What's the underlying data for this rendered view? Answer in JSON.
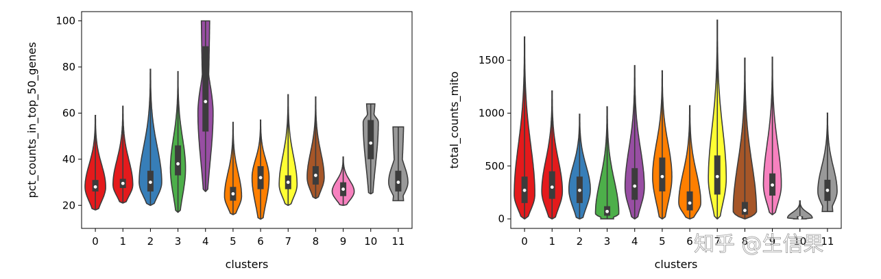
{
  "watermark": "知乎 @生信果",
  "colors": [
    "#e41a1c",
    "#e41a1c",
    "#377eb8",
    "#4daf4a",
    "#984ea3",
    "#ff7f00",
    "#ff7f00",
    "#ffff33",
    "#a65628",
    "#f781bf",
    "#999999",
    "#999999"
  ],
  "chart_data": [
    {
      "type": "violin",
      "xlabel": "clusters",
      "ylabel": "pct_counts_in_top_50_genes",
      "ylim": [
        10,
        104
      ],
      "yticks": [
        20,
        40,
        60,
        80,
        100
      ],
      "categories": [
        "0",
        "1",
        "2",
        "3",
        "4",
        "5",
        "6",
        "7",
        "8",
        "9",
        "10",
        "11"
      ],
      "violins": [
        {
          "min": 18,
          "q1": 26,
          "median": 28,
          "q3": 31,
          "max": 59,
          "peak": 28,
          "width": 0.75
        },
        {
          "min": 21,
          "q1": 27.5,
          "median": 29.5,
          "q3": 31.5,
          "max": 63,
          "peak": 29,
          "width": 0.72
        },
        {
          "min": 20,
          "q1": 26,
          "median": 30,
          "q3": 35,
          "max": 79,
          "peak": 30,
          "width": 0.82
        },
        {
          "min": 17,
          "q1": 33,
          "median": 38,
          "q3": 46,
          "max": 78,
          "peak": 36,
          "width": 0.55
        },
        {
          "min": 26,
          "q1": 52,
          "median": 65,
          "q3": 89,
          "max": 100,
          "peak": 60,
          "width": 0.55,
          "flatTop": true
        },
        {
          "min": 16,
          "q1": 22,
          "median": 25,
          "q3": 28,
          "max": 56,
          "peak": 24,
          "width": 0.62
        },
        {
          "min": 14,
          "q1": 27,
          "median": 32,
          "q3": 37,
          "max": 57,
          "peak": 32,
          "width": 0.62
        },
        {
          "min": 20,
          "q1": 27,
          "median": 30,
          "q3": 33,
          "max": 68,
          "peak": 29,
          "width": 0.65
        },
        {
          "min": 23,
          "q1": 29,
          "median": 33,
          "q3": 37,
          "max": 67,
          "peak": 32,
          "width": 0.62
        },
        {
          "min": 20,
          "q1": 24,
          "median": 27,
          "q3": 30,
          "max": 41,
          "peak": 26,
          "width": 0.8
        },
        {
          "min": 25,
          "q1": 40,
          "median": 47,
          "q3": 57,
          "max": 64,
          "peak": 56,
          "width": 0.55,
          "flatTop": true
        },
        {
          "min": 22,
          "q1": 26,
          "median": 30,
          "q3": 35,
          "max": 54,
          "peak": 30,
          "width": 0.7,
          "flatTop": true,
          "flatBottom": true
        }
      ]
    },
    {
      "type": "violin",
      "xlabel": "clusters",
      "ylabel": "total_counts_mito",
      "ylim": [
        -90,
        1960
      ],
      "yticks": [
        0,
        500,
        1000,
        1500
      ],
      "categories": [
        "0",
        "1",
        "2",
        "3",
        "4",
        "5",
        "6",
        "7",
        "8",
        "9",
        "10",
        "11"
      ],
      "violins": [
        {
          "min": 0,
          "q1": 150,
          "median": 270,
          "q3": 400,
          "max": 1720,
          "peak": 230,
          "width": 0.75
        },
        {
          "min": 0,
          "q1": 190,
          "median": 300,
          "q3": 450,
          "max": 1210,
          "peak": 260,
          "width": 0.75
        },
        {
          "min": 0,
          "q1": 150,
          "median": 270,
          "q3": 400,
          "max": 990,
          "peak": 280,
          "width": 0.78
        },
        {
          "min": 0,
          "q1": 30,
          "median": 70,
          "q3": 120,
          "max": 1060,
          "peak": 50,
          "width": 0.85,
          "flatBottom": true
        },
        {
          "min": 0,
          "q1": 180,
          "median": 310,
          "q3": 480,
          "max": 1450,
          "peak": 300,
          "width": 0.7
        },
        {
          "min": 0,
          "q1": 260,
          "median": 400,
          "q3": 580,
          "max": 1400,
          "peak": 400,
          "width": 0.7
        },
        {
          "min": 0,
          "q1": 80,
          "median": 150,
          "q3": 260,
          "max": 1070,
          "peak": 150,
          "width": 0.8
        },
        {
          "min": 0,
          "q1": 230,
          "median": 400,
          "q3": 600,
          "max": 1880,
          "peak": 380,
          "width": 0.65
        },
        {
          "min": 0,
          "q1": 40,
          "median": 80,
          "q3": 160,
          "max": 1520,
          "peak": 70,
          "width": 0.85
        },
        {
          "min": 40,
          "q1": 220,
          "median": 320,
          "q3": 430,
          "max": 1530,
          "peak": 320,
          "width": 0.65
        },
        {
          "min": 0,
          "q1": 5,
          "median": 10,
          "q3": 25,
          "max": 170,
          "peak": 10,
          "width": 0.9,
          "flatBottom": true
        },
        {
          "min": 70,
          "q1": 170,
          "median": 270,
          "q3": 370,
          "max": 1000,
          "peak": 260,
          "width": 0.7,
          "flatBottom": true
        }
      ]
    }
  ]
}
